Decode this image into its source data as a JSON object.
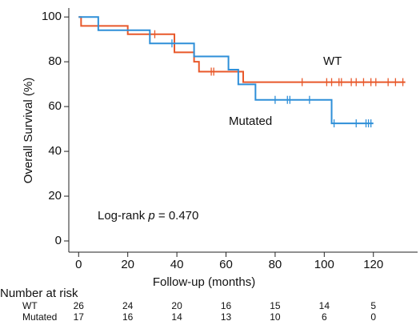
{
  "chart_data": {
    "type": "step",
    "xlabel": "Follow-up (months)",
    "ylabel": "Overall Survival (%)",
    "xlim": [
      -4,
      138
    ],
    "ylim": [
      -5,
      104
    ],
    "xticks": [
      0,
      20,
      40,
      60,
      80,
      100,
      120
    ],
    "yticks": [
      0,
      20,
      40,
      60,
      80,
      100
    ],
    "annotation": {
      "prefix": "Log-rank",
      "variable": "p",
      "value": "= 0.470"
    },
    "series": [
      {
        "name": "WT",
        "color": "#e8582a",
        "x": [
          0,
          1,
          20,
          39,
          47,
          49,
          67,
          133
        ],
        "values": [
          100,
          96,
          92.3,
          84.2,
          80,
          75.6,
          70.9,
          70.9
        ],
        "censored": {
          "x": [
            29,
            31,
            54,
            55,
            91,
            101,
            103,
            106,
            107,
            111,
            113,
            116,
            119,
            121,
            126,
            129,
            132
          ],
          "values": [
            92.3,
            92.3,
            75.6,
            75.6,
            70.9,
            70.9,
            70.9,
            70.9,
            70.9,
            70.9,
            70.9,
            70.9,
            70.9,
            70.9,
            70.9,
            70.9,
            70.9
          ]
        }
      },
      {
        "name": "Mutated",
        "color": "#2e8fd8",
        "x": [
          0,
          8,
          29,
          47,
          61,
          65,
          72,
          103,
          120
        ],
        "values": [
          100,
          94.1,
          88.2,
          82.4,
          76.5,
          69.9,
          63,
          52.5,
          52.5
        ],
        "censored": {
          "x": [
            38,
            80,
            85,
            86,
            94,
            104,
            113,
            117,
            118,
            119
          ],
          "values": [
            88.2,
            63,
            63,
            63,
            63,
            52.5,
            52.5,
            52.5,
            52.5,
            52.5
          ]
        }
      }
    ],
    "risk_table": {
      "title": "Number at risk",
      "times": [
        0,
        20,
        40,
        60,
        80,
        100,
        120
      ],
      "rows": [
        {
          "name": "WT",
          "counts": [
            26,
            24,
            20,
            16,
            15,
            14,
            5
          ]
        },
        {
          "name": "Mutated",
          "counts": [
            17,
            16,
            14,
            13,
            10,
            6,
            0
          ]
        }
      ]
    }
  }
}
